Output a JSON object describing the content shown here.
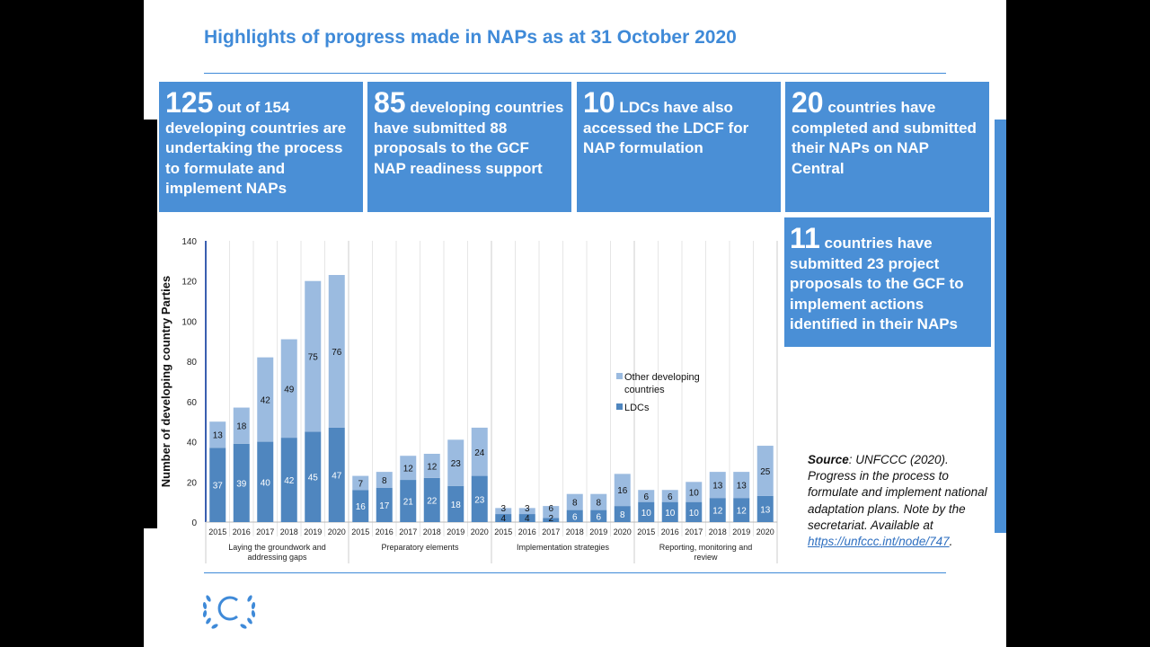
{
  "title": "Highlights of progress made in NAPs as at 31 October 2020",
  "boxes": [
    {
      "big": "125",
      "text": " out of 154 developing countries are undertaking the process to formulate and implement NAPs"
    },
    {
      "big": "85",
      "text": " developing countries have submitted 88 proposals to the GCF NAP readiness support"
    },
    {
      "big": "10",
      "text": " LDCs have also accessed the LDCF for NAP formulation"
    },
    {
      "big": "20",
      "text": " countries have completed and submitted their NAPs on NAP Central"
    },
    {
      "big": "11",
      "text": " countries have submitted 23 project proposals to the GCF to implement actions identified in their NAPs"
    }
  ],
  "source": {
    "label": "Source",
    "text": ": UNFCCC (2020). Progress in the process to formulate and implement national adaptation plans. Note by the secretariat. Available at ",
    "link": "https://unfccc.int/node/747",
    "end": "."
  },
  "colors": {
    "accent": "#4a8fd6",
    "ldc": "#4f86bf",
    "other": "#9bbbe0",
    "title": "#3f8ad8"
  },
  "chart_data": {
    "type": "bar",
    "stacked": true,
    "ylabel": "Number of developing country Parties",
    "ylim": [
      0,
      140
    ],
    "yticks": [
      0,
      20,
      40,
      60,
      80,
      100,
      120,
      140
    ],
    "groups": [
      "Laying the groundwork and addressing gaps",
      "Preparatory elements",
      "Implementation strategies",
      "Reporting, monitoring and review"
    ],
    "categories": [
      "2015",
      "2016",
      "2017",
      "2018",
      "2019",
      "2020"
    ],
    "legend_position": "right",
    "series": [
      {
        "name": "LDCs",
        "values": [
          [
            37,
            39,
            40,
            42,
            45,
            47
          ],
          [
            16,
            17,
            21,
            22,
            18,
            23
          ],
          [
            4,
            4,
            2,
            6,
            6,
            8
          ],
          [
            10,
            10,
            10,
            12,
            12,
            13
          ]
        ]
      },
      {
        "name": "Other developing countries",
        "values": [
          [
            13,
            18,
            42,
            49,
            75,
            76
          ],
          [
            7,
            8,
            12,
            12,
            23,
            24
          ],
          [
            3,
            3,
            6,
            8,
            8,
            16
          ],
          [
            6,
            6,
            10,
            13,
            13,
            25
          ]
        ]
      }
    ]
  }
}
